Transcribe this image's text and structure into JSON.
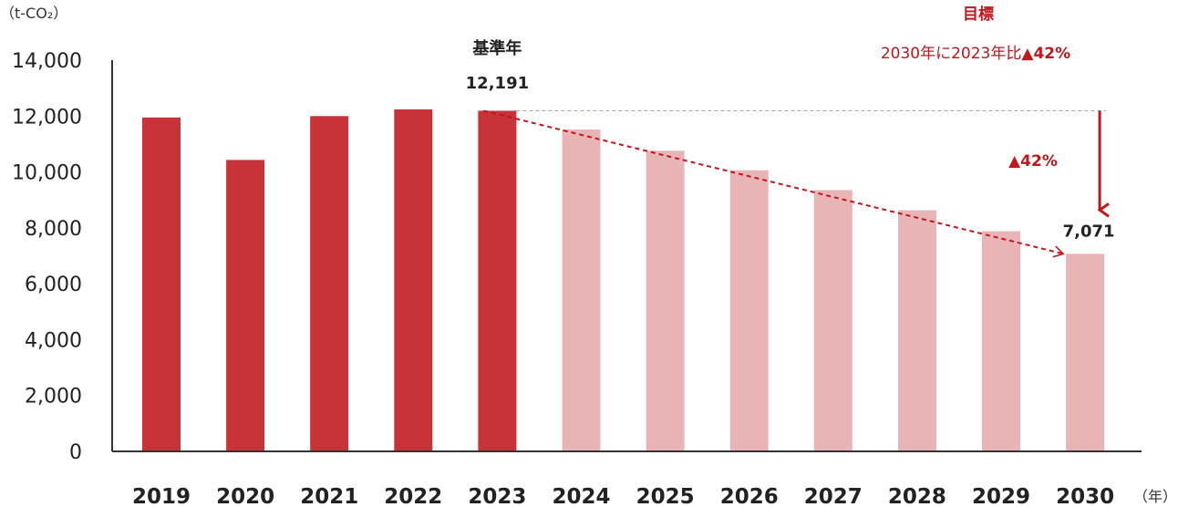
{
  "chart_data": {
    "type": "bar",
    "categories": [
      "2019",
      "2020",
      "2021",
      "2022",
      "2023",
      "2024",
      "2025",
      "2026",
      "2027",
      "2028",
      "2029",
      "2030"
    ],
    "values": [
      11950,
      10430,
      12000,
      12240,
      12191,
      11520,
      10760,
      10060,
      9350,
      8630,
      7880,
      7071
    ],
    "bar_kind": [
      "actual",
      "actual",
      "actual",
      "actual",
      "actual",
      "target",
      "target",
      "target",
      "target",
      "target",
      "target",
      "target"
    ],
    "ylim": [
      0,
      14000
    ],
    "yticks": [
      0,
      2000,
      4000,
      6000,
      8000,
      10000,
      12000,
      14000
    ],
    "ytick_labels": [
      "0",
      "2,000",
      "4,000",
      "6,000",
      "8,000",
      "10,000",
      "12,000",
      "14,000"
    ],
    "ylabel": "（t-CO₂）",
    "xlabel": "（年）",
    "grid": false,
    "colors": {
      "actual": "#c8333a",
      "target": "#e9b4b6",
      "accent": "#c0161c",
      "reference_line": "#aaaaaa"
    },
    "annotations": {
      "base_year_label": "基準年",
      "base_year_value": "12,191",
      "target_title": "目標",
      "target_text": "2030年に2023年比",
      "target_text_bold": "▲42%",
      "reduction_label": "▲42%",
      "final_value": "7,071"
    }
  }
}
